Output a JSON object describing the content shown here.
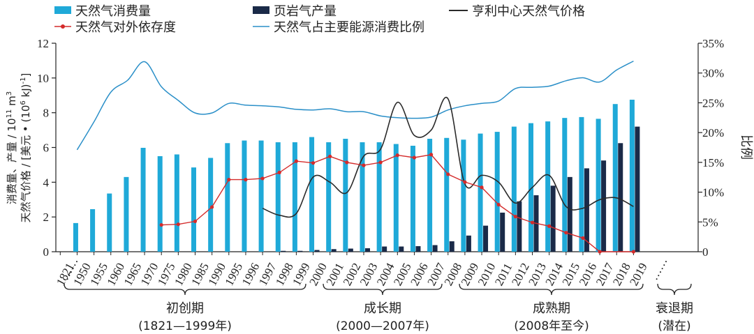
{
  "chart_data": {
    "type": "bar",
    "categories": [
      "1821",
      "1950",
      "1955",
      "1960",
      "1965",
      "1970",
      "1975",
      "1980",
      "1985",
      "1990",
      "1995",
      "1996",
      "1997",
      "1998",
      "1999",
      "2000",
      "2001",
      "2002",
      "2003",
      "2004",
      "2005",
      "2006",
      "2007",
      "2008",
      "2009",
      "2010",
      "2011",
      "2012",
      "2013",
      "2014",
      "2015",
      "2016",
      "2017",
      "2018",
      "2019"
    ],
    "ylim_left": [
      0,
      12
    ],
    "ylim_right": [
      0,
      35
    ],
    "left_ticks": [
      "0",
      "2",
      "4",
      "6",
      "8",
      "10",
      "12"
    ],
    "right_ticks": [
      "0",
      "5%",
      "10%",
      "15%",
      "20%",
      "25%",
      "30%",
      "35%"
    ],
    "ylabel_left_line1": "消费量、产量 / 10",
    "ylabel_left_sup1": "11",
    "ylabel_left_unit1": " m",
    "ylabel_left_sup1b": "3",
    "ylabel_left_line2": "天然气价格 / [美元 • (10",
    "ylabel_left_sup2": "6",
    "ylabel_left_unit2": " kJ)",
    "ylabel_left_sup2b": "-1",
    "ylabel_left_close2": "]",
    "ylabel_right": "比例",
    "break_marker": "……",
    "legend": {
      "consumption": "天然气消费量",
      "shale": "页岩气产量",
      "price": "亨利中心天然气价格",
      "dependence": "天然气对外依存度",
      "share": "天然气占主要能源消费比例"
    },
    "colors": {
      "consumption": "#1fa9d8",
      "shale": "#1a2a48",
      "price": "#2a2a2a",
      "dependence": "#d42b2b",
      "share": "#2a8fc8"
    },
    "series": [
      {
        "name": "天然气消费量",
        "axis": "left",
        "type": "bar",
        "values": [
          null,
          1.65,
          2.45,
          3.35,
          4.3,
          5.98,
          5.5,
          5.6,
          4.85,
          5.4,
          6.25,
          6.4,
          6.4,
          6.3,
          6.3,
          6.6,
          6.3,
          6.5,
          6.3,
          6.3,
          6.2,
          6.1,
          6.5,
          6.55,
          6.45,
          6.8,
          6.9,
          7.2,
          7.4,
          7.5,
          7.7,
          7.75,
          7.65,
          8.5,
          8.75
        ]
      },
      {
        "name": "页岩气产量",
        "axis": "left",
        "type": "bar",
        "values": [
          null,
          null,
          null,
          null,
          null,
          null,
          null,
          null,
          null,
          null,
          null,
          null,
          null,
          0.05,
          0.05,
          0.1,
          0.15,
          0.18,
          0.2,
          0.3,
          0.3,
          0.32,
          0.38,
          0.6,
          0.93,
          1.5,
          2.25,
          2.9,
          3.25,
          3.8,
          4.3,
          4.8,
          5.25,
          6.25,
          7.2
        ]
      },
      {
        "name": "亨利中心天然气价格",
        "axis": "left",
        "type": "line",
        "values": [
          null,
          null,
          null,
          null,
          null,
          null,
          null,
          null,
          null,
          null,
          null,
          null,
          2.5,
          2.1,
          2.2,
          4.3,
          4.0,
          3.4,
          5.5,
          5.9,
          8.6,
          6.7,
          7.0,
          8.8,
          3.9,
          4.4,
          4.0,
          2.8,
          3.7,
          4.4,
          2.6,
          2.5,
          3.0,
          3.1,
          2.6
        ]
      },
      {
        "name": "天然气对外依存度",
        "axis": "right",
        "type": "line",
        "values": [
          null,
          null,
          null,
          null,
          null,
          null,
          4.5,
          4.6,
          5.1,
          7.5,
          12.1,
          12.1,
          12.3,
          13.3,
          15.2,
          14.9,
          16.0,
          15.0,
          14.5,
          15.0,
          16.2,
          15.8,
          16.3,
          13.0,
          11.7,
          10.8,
          7.9,
          5.9,
          4.9,
          4.3,
          3.2,
          2.3,
          0.0,
          null,
          0.0
        ]
      },
      {
        "name": "天然气占主要能源消费比例",
        "axis": "right",
        "type": "line",
        "values": [
          null,
          17.1,
          21.8,
          26.8,
          28.8,
          31.9,
          27.7,
          25.4,
          23.3,
          23.3,
          24.9,
          24.6,
          24.5,
          24.3,
          23.9,
          23.8,
          24.0,
          23.5,
          23.5,
          22.8,
          22.5,
          22.4,
          22.6,
          23.8,
          24.5,
          24.9,
          25.3,
          27.4,
          27.6,
          27.8,
          28.7,
          29.2,
          28.5,
          30.5,
          32.0
        ]
      }
    ],
    "phases": [
      {
        "name": "初创期",
        "range": "(1821—1999年)"
      },
      {
        "name": "成长期",
        "range": "(2000—2007年)"
      },
      {
        "name": "成熟期",
        "range": "(2008年至今)"
      },
      {
        "name": "衰退期",
        "range": "(潜在)"
      }
    ]
  }
}
